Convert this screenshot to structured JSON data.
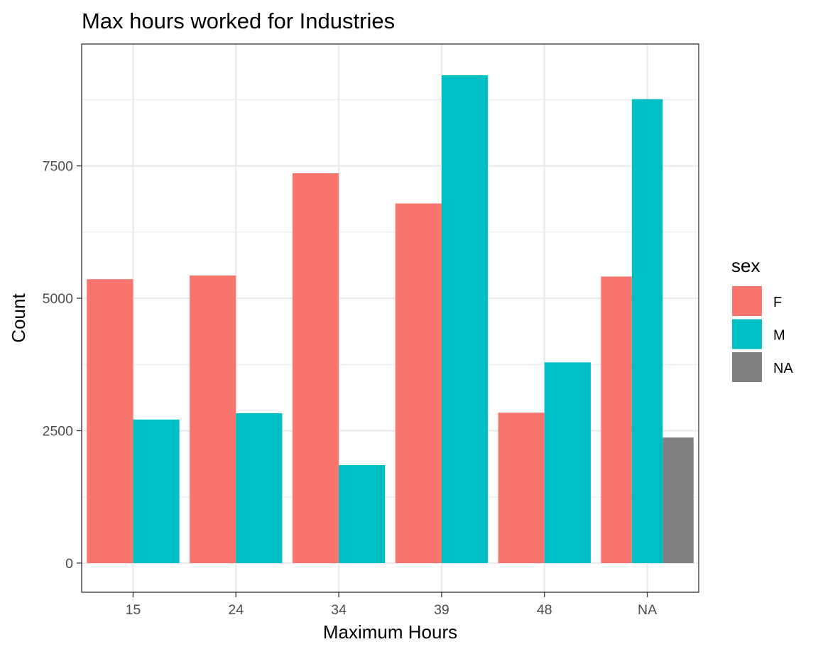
{
  "chart_data": {
    "type": "bar",
    "title": "Max hours worked for Industries",
    "xlabel": "Maximum Hours",
    "ylabel": "Count",
    "categories": [
      "15",
      "24",
      "34",
      "39",
      "48",
      "NA"
    ],
    "ylim": [
      -550,
      9800
    ],
    "yticks": [
      0,
      2500,
      5000,
      7500
    ],
    "grid": true,
    "legend": {
      "title": "sex",
      "placement": "right",
      "entries": [
        {
          "label": "F",
          "color": "#F8766D"
        },
        {
          "label": "M",
          "color": "#00BFC4"
        },
        {
          "label": "NA",
          "color": "#7F7F7F"
        }
      ]
    },
    "series": [
      {
        "name": "F",
        "color": "#F8766D",
        "values": [
          5360,
          5430,
          7360,
          6790,
          2840,
          5410
        ]
      },
      {
        "name": "M",
        "color": "#00BFC4",
        "values": [
          2710,
          2830,
          1850,
          9210,
          3790,
          8760
        ]
      },
      {
        "name": "NA",
        "color": "#7F7F7F",
        "values": [
          null,
          null,
          null,
          null,
          null,
          2370
        ]
      }
    ]
  }
}
